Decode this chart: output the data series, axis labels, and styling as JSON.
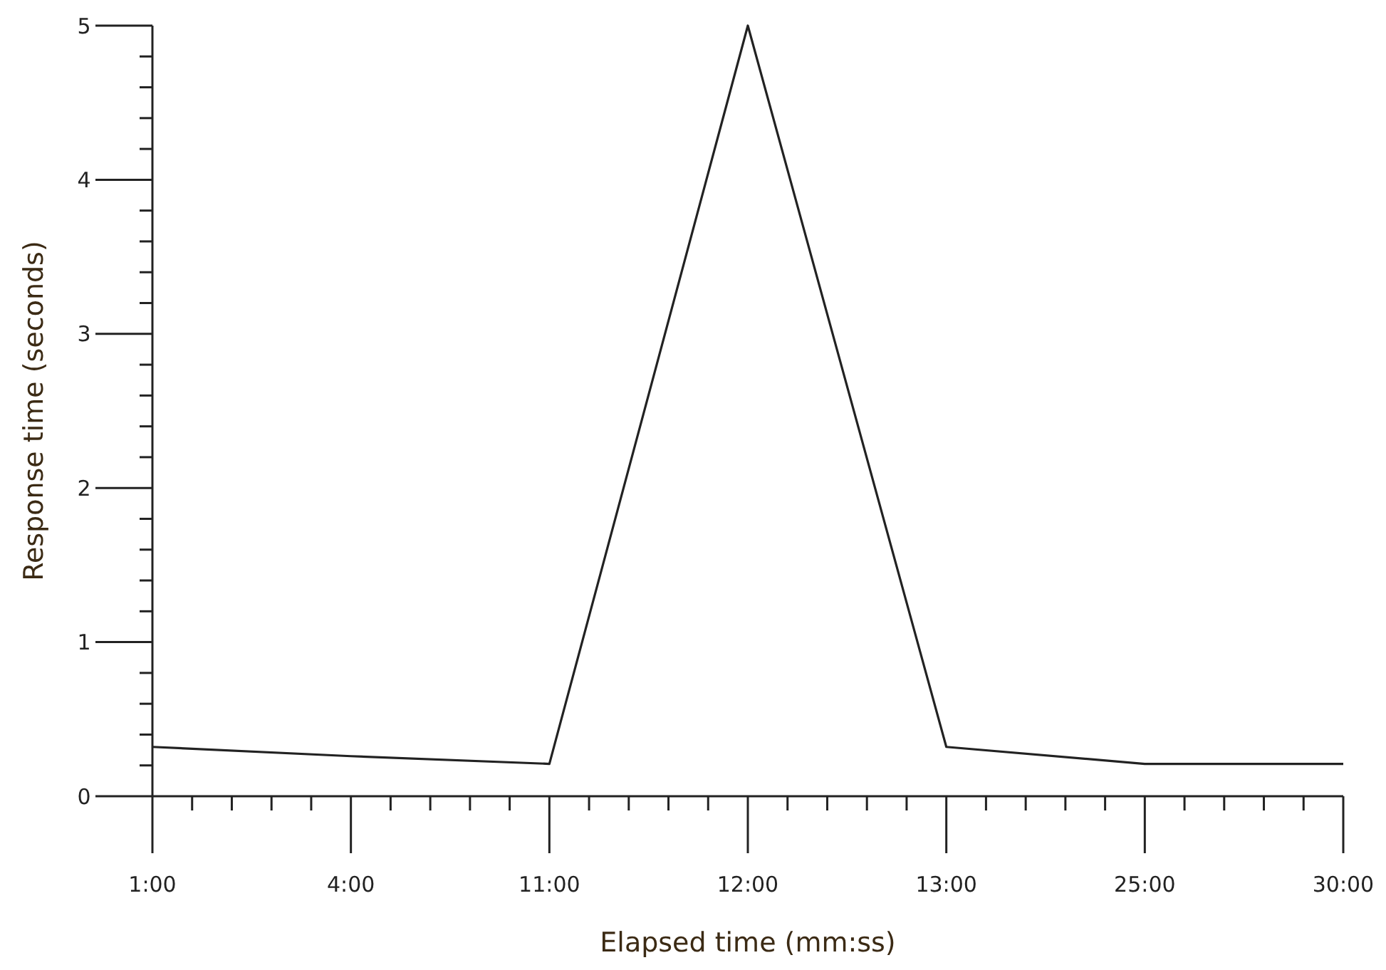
{
  "chart_data": {
    "type": "line",
    "xlabel": "Elapsed time (mm:ss)",
    "ylabel": "Response time (seconds)",
    "categories": [
      "1:00",
      "4:00",
      "11:00",
      "12:00",
      "13:00",
      "25:00",
      "30:00"
    ],
    "series": [
      {
        "color": "#222222",
        "values": [
          0.32,
          0.26,
          0.21,
          5,
          0.32,
          0.21,
          0.21
        ]
      }
    ],
    "ylim": [
      0,
      5
    ],
    "yticks": [
      0,
      {
        "value": 0.2,
        "label": null
      },
      {
        "value": 0.4,
        "label": null
      },
      {
        "value": 0.6,
        "label": null
      },
      {
        "value": 0.8,
        "label": null
      },
      1,
      {
        "value": 1.2,
        "label": null
      },
      {
        "value": 1.4,
        "label": null
      },
      {
        "value": 1.6,
        "label": null
      },
      {
        "value": 1.8,
        "label": null
      },
      2,
      {
        "value": 2.2,
        "label": null
      },
      {
        "value": 2.4,
        "label": null
      },
      {
        "value": 2.6,
        "label": null
      },
      {
        "value": 2.8,
        "label": null
      },
      3,
      {
        "value": 3.2,
        "label": null
      },
      {
        "value": 3.4,
        "label": null
      },
      {
        "value": 3.6,
        "label": null
      },
      {
        "value": 3.8,
        "label": null
      },
      4,
      {
        "value": 4.2,
        "label": null
      },
      {
        "value": 4.4,
        "label": null
      },
      {
        "value": 4.6,
        "label": null
      },
      {
        "value": 4.8,
        "label": null
      },
      5
    ],
    "grid": false,
    "marker": "none",
    "line_style": "solid"
  }
}
